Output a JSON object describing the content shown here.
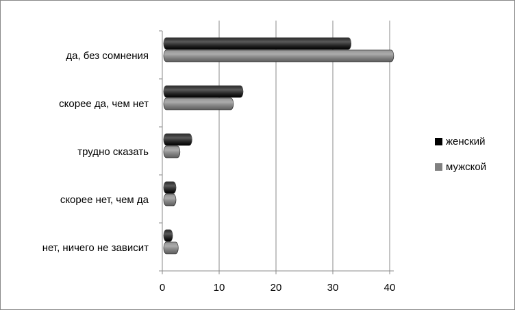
{
  "chart_data": {
    "type": "bar",
    "orientation": "horizontal",
    "categories": [
      "да, без сомнения",
      "скорее да, чем нет",
      "трудно сказать",
      "скорее нет, чем да",
      "нет, ничего не зависит"
    ],
    "series": [
      {
        "name": "женский",
        "color": "#000000",
        "values": [
          32,
          13,
          4,
          1.2,
          0.6
        ]
      },
      {
        "name": "мужской",
        "color": "#808080",
        "values": [
          39.5,
          11.3,
          1.9,
          1.2,
          1.6
        ]
      }
    ],
    "xlim": [
      0,
      40
    ],
    "xticks": [
      0,
      10,
      20,
      30,
      40
    ],
    "grid": true,
    "legend": "right"
  }
}
